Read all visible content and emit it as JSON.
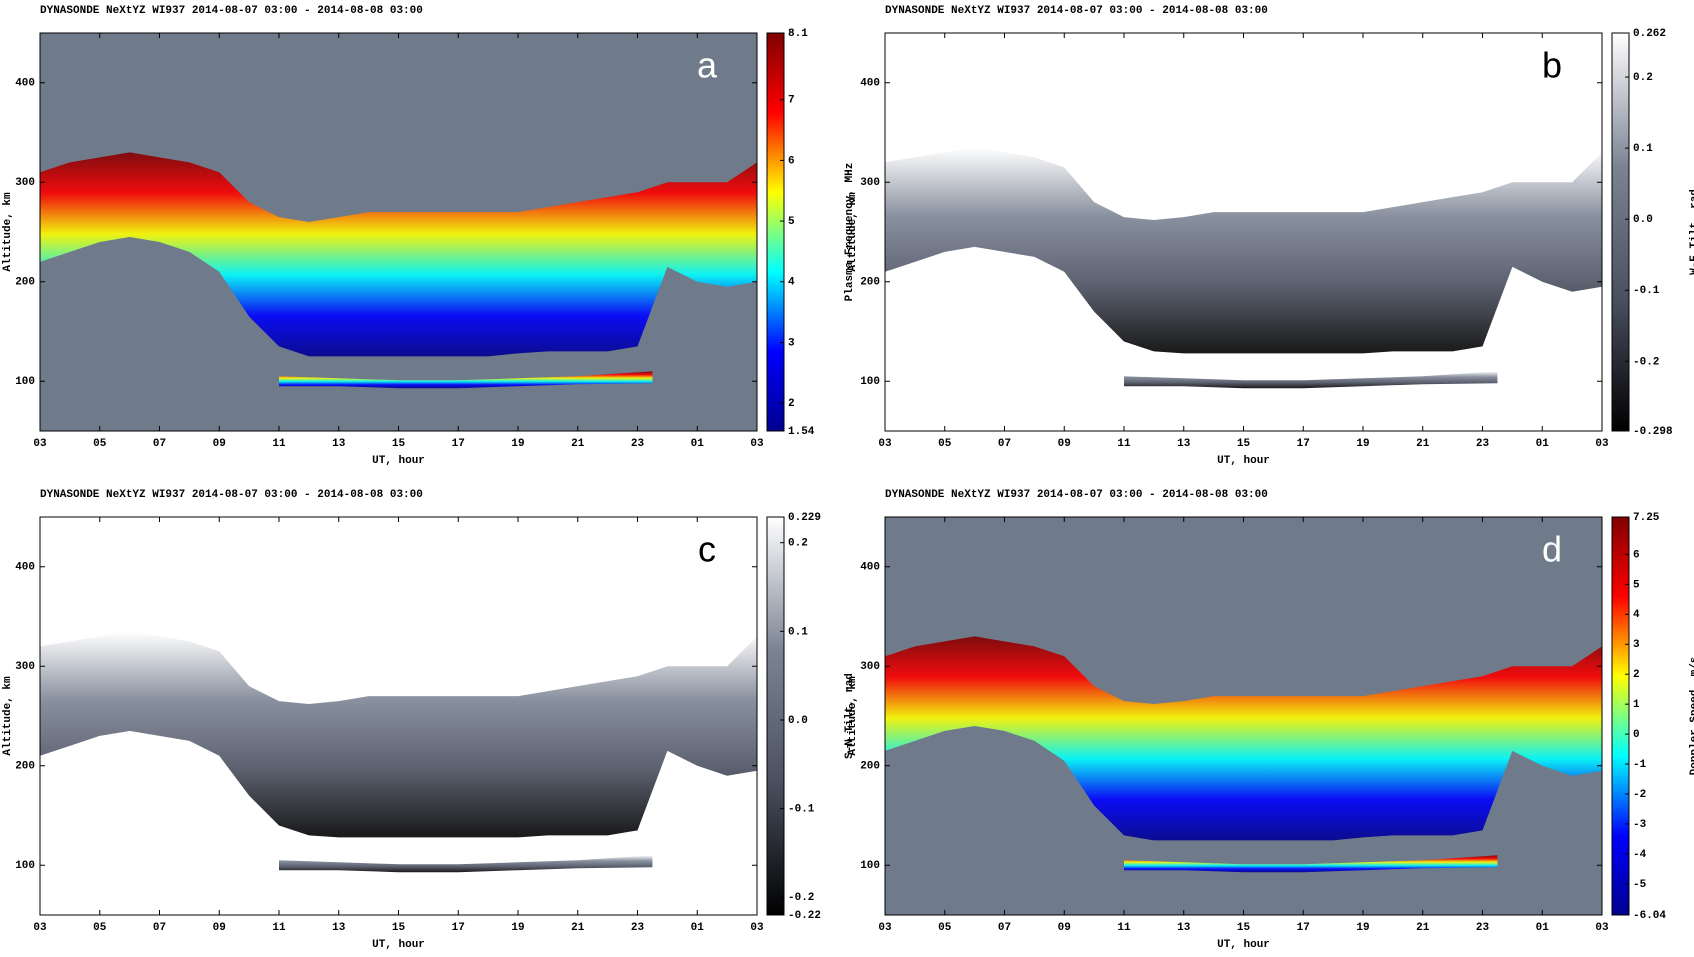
{
  "chart_data": [
    {
      "type": "heatmap",
      "title": "DYNASONDE NeXtYZ WI937 2014-08-07 03:00 - 2014-08-08 03:00",
      "annotation": "a",
      "xlabel": "UT, hour",
      "ylabel": "Altitude, km",
      "colorbar_label": "Plasma Frequency, MHz",
      "background": "#6f7b8b",
      "annotation_color": "#ffffff",
      "colormap": [
        "#00008f",
        "#0000ff",
        "#00ffff",
        "#ffff00",
        "#ff0000",
        "#800000"
      ],
      "xlim": [
        3,
        27
      ],
      "xticks": [
        {
          "value": 3,
          "label": "03"
        },
        {
          "value": 5,
          "label": "05"
        },
        {
          "value": 7,
          "label": "07"
        },
        {
          "value": 9,
          "label": "09"
        },
        11,
        13,
        15,
        17,
        19,
        21,
        23,
        {
          "value": 25,
          "label": "01"
        },
        {
          "value": 27,
          "label": "03"
        }
      ],
      "ylim": [
        50,
        450
      ],
      "yticks": [
        100,
        200,
        300,
        400
      ],
      "clim": [
        1.54,
        8.1
      ],
      "cticks": [
        1.54,
        2,
        3,
        4,
        5,
        6,
        7,
        8.1
      ],
      "bands": [
        {
          "x": [
            3,
            4,
            5,
            6,
            7,
            8,
            9,
            10,
            11,
            12,
            13,
            14,
            15,
            16,
            17,
            18,
            19,
            20,
            21,
            22,
            23,
            24,
            25,
            26,
            27
          ],
          "bottom": [
            220,
            230,
            240,
            245,
            240,
            230,
            210,
            165,
            135,
            125,
            125,
            125,
            125,
            125,
            125,
            125,
            128,
            130,
            130,
            130,
            135,
            215,
            200,
            195,
            200
          ],
          "top": [
            310,
            320,
            325,
            330,
            325,
            320,
            310,
            280,
            265,
            260,
            265,
            270,
            270,
            270,
            270,
            270,
            270,
            275,
            280,
            285,
            290,
            300,
            300,
            300,
            320
          ]
        },
        {
          "x": [
            11,
            13,
            15,
            17,
            19,
            21,
            23.5
          ],
          "bottom": [
            95,
            95,
            93,
            93,
            95,
            97,
            98
          ],
          "top": [
            105,
            103,
            101,
            101,
            103,
            105,
            110
          ]
        }
      ]
    },
    {
      "type": "heatmap",
      "title": "DYNASONDE NeXtYZ WI937 2014-08-07 03:00 - 2014-08-08 03:00",
      "annotation": "b",
      "xlabel": "UT, hour",
      "ylabel": "Altitude, km",
      "colorbar_label": "W-E Tilt, rad",
      "background": "#ffffff",
      "annotation_color": "#000000",
      "colormap": [
        "#000000",
        "#4a5060",
        "#7c8494",
        "#ffffff"
      ],
      "xlim": [
        3,
        27
      ],
      "xticks": [
        {
          "value": 3,
          "label": "03"
        },
        {
          "value": 5,
          "label": "05"
        },
        {
          "value": 7,
          "label": "07"
        },
        {
          "value": 9,
          "label": "09"
        },
        11,
        13,
        15,
        17,
        19,
        21,
        23,
        {
          "value": 25,
          "label": "01"
        },
        {
          "value": 27,
          "label": "03"
        }
      ],
      "ylim": [
        50,
        450
      ],
      "yticks": [
        100,
        200,
        300,
        400
      ],
      "clim": [
        -0.298,
        0.262
      ],
      "cticks": [
        -0.298,
        -0.2,
        -0.1,
        {
          "value": 0,
          "label": "0.0"
        },
        0.1,
        0.2,
        0.262
      ],
      "bands": [
        {
          "x": [
            3,
            4,
            5,
            6,
            7,
            8,
            9,
            10,
            11,
            12,
            13,
            14,
            15,
            16,
            17,
            18,
            19,
            20,
            21,
            22,
            23,
            24,
            25,
            26,
            27
          ],
          "bottom": [
            210,
            220,
            230,
            235,
            230,
            225,
            210,
            170,
            140,
            130,
            128,
            128,
            128,
            128,
            128,
            128,
            128,
            130,
            130,
            130,
            135,
            215,
            200,
            190,
            195
          ],
          "top": [
            320,
            325,
            330,
            335,
            330,
            325,
            315,
            280,
            265,
            262,
            265,
            270,
            270,
            270,
            270,
            270,
            270,
            275,
            280,
            285,
            290,
            300,
            300,
            300,
            330
          ]
        },
        {
          "x": [
            11,
            13,
            15,
            17,
            19,
            21,
            23.5
          ],
          "bottom": [
            95,
            95,
            93,
            93,
            95,
            97,
            98
          ],
          "top": [
            105,
            103,
            101,
            101,
            103,
            105,
            110
          ]
        }
      ]
    },
    {
      "type": "heatmap",
      "title": "DYNASONDE NeXtYZ WI937 2014-08-07 03:00 - 2014-08-08 03:00",
      "annotation": "c",
      "xlabel": "UT, hour",
      "ylabel": "Altitude, km",
      "colorbar_label": "S-N Tilt, rad",
      "background": "#ffffff",
      "annotation_color": "#000000",
      "colormap": [
        "#000000",
        "#4a5060",
        "#7c8494",
        "#ffffff"
      ],
      "xlim": [
        3,
        27
      ],
      "xticks": [
        {
          "value": 3,
          "label": "03"
        },
        {
          "value": 5,
          "label": "05"
        },
        {
          "value": 7,
          "label": "07"
        },
        {
          "value": 9,
          "label": "09"
        },
        11,
        13,
        15,
        17,
        19,
        21,
        23,
        {
          "value": 25,
          "label": "01"
        },
        {
          "value": 27,
          "label": "03"
        }
      ],
      "ylim": [
        50,
        450
      ],
      "yticks": [
        100,
        200,
        300,
        400
      ],
      "clim": [
        -0.22,
        0.229
      ],
      "cticks": [
        -0.22,
        -0.2,
        -0.1,
        {
          "value": 0,
          "label": "0.0"
        },
        0.1,
        0.2,
        0.229
      ],
      "bands": [
        {
          "x": [
            3,
            4,
            5,
            6,
            7,
            8,
            9,
            10,
            11,
            12,
            13,
            14,
            15,
            16,
            17,
            18,
            19,
            20,
            21,
            22,
            23,
            24,
            25,
            26,
            27
          ],
          "bottom": [
            210,
            220,
            230,
            235,
            230,
            225,
            210,
            170,
            140,
            130,
            128,
            128,
            128,
            128,
            128,
            128,
            128,
            130,
            130,
            130,
            135,
            215,
            200,
            190,
            195
          ],
          "top": [
            320,
            325,
            330,
            335,
            330,
            325,
            315,
            280,
            265,
            262,
            265,
            270,
            270,
            270,
            270,
            270,
            270,
            275,
            280,
            285,
            290,
            300,
            300,
            300,
            330
          ]
        },
        {
          "x": [
            11,
            13,
            15,
            17,
            19,
            21,
            23.5
          ],
          "bottom": [
            95,
            95,
            93,
            93,
            95,
            97,
            98
          ],
          "top": [
            105,
            103,
            101,
            101,
            103,
            105,
            110
          ]
        }
      ]
    },
    {
      "type": "heatmap",
      "title": "DYNASONDE NeXtYZ WI937 2014-08-07 03:00 - 2014-08-08 03:00",
      "annotation": "d",
      "xlabel": "UT, hour",
      "ylabel": "Altitude, km",
      "colorbar_label": "Doppler Speed, m/s",
      "background": "#6f7b8b",
      "annotation_color": "#ffffff",
      "colormap": [
        "#00008f",
        "#0000ff",
        "#00ffff",
        "#ffff00",
        "#ff0000",
        "#800000"
      ],
      "xlim": [
        3,
        27
      ],
      "xticks": [
        {
          "value": 3,
          "label": "03"
        },
        {
          "value": 5,
          "label": "05"
        },
        {
          "value": 7,
          "label": "07"
        },
        {
          "value": 9,
          "label": "09"
        },
        11,
        13,
        15,
        17,
        19,
        21,
        23,
        {
          "value": 25,
          "label": "01"
        },
        {
          "value": 27,
          "label": "03"
        }
      ],
      "ylim": [
        50,
        450
      ],
      "yticks": [
        100,
        200,
        300,
        400
      ],
      "clim": [
        -6.04,
        7.25
      ],
      "cticks": [
        -6.04,
        -5,
        -4,
        -3,
        -2,
        -1,
        0,
        1,
        2,
        3,
        4,
        5,
        6,
        7.25
      ],
      "bands": [
        {
          "x": [
            3,
            4,
            5,
            6,
            7,
            8,
            9,
            10,
            11,
            12,
            13,
            14,
            15,
            16,
            17,
            18,
            19,
            20,
            21,
            22,
            23,
            24,
            25,
            26,
            27
          ],
          "bottom": [
            215,
            225,
            235,
            240,
            235,
            225,
            205,
            160,
            130,
            125,
            125,
            125,
            125,
            125,
            125,
            125,
            128,
            130,
            130,
            130,
            135,
            215,
            200,
            190,
            195
          ],
          "top": [
            310,
            320,
            325,
            330,
            325,
            320,
            310,
            280,
            265,
            262,
            265,
            270,
            270,
            270,
            270,
            270,
            270,
            275,
            280,
            285,
            290,
            300,
            300,
            300,
            320
          ]
        },
        {
          "x": [
            11,
            13,
            15,
            17,
            19,
            21,
            23.5
          ],
          "bottom": [
            95,
            95,
            93,
            93,
            95,
            97,
            98
          ],
          "top": [
            105,
            103,
            101,
            101,
            103,
            105,
            110
          ]
        }
      ]
    }
  ]
}
